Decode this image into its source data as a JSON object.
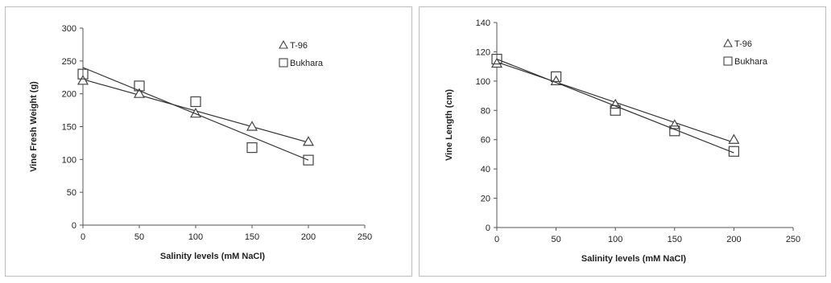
{
  "chart_data": [
    {
      "type": "scatter",
      "xlabel": "Salinity levels (mM NaCl)",
      "ylabel": "Vine Fresh Weight (g)",
      "xlim": [
        0,
        250
      ],
      "ylim": [
        0,
        300
      ],
      "xticks": [
        "0",
        "50",
        "100",
        "150",
        "200",
        "250"
      ],
      "yticks": [
        "0",
        "50",
        "100",
        "150",
        "200",
        "250",
        "300"
      ],
      "legend_position": "top-right",
      "grid": false,
      "series": [
        {
          "name": "T-96",
          "marker": "triangle",
          "x": [
            0,
            50,
            100,
            150,
            200
          ],
          "values": [
            220,
            200,
            170,
            150,
            127
          ],
          "trendline": [
            222,
            126
          ]
        },
        {
          "name": "Bukhara",
          "marker": "square",
          "x": [
            0,
            50,
            100,
            150,
            200
          ],
          "values": [
            230,
            212,
            188,
            118,
            99
          ],
          "trendline": [
            240,
            99
          ]
        }
      ]
    },
    {
      "type": "scatter",
      "xlabel": "Salinity levels (mM NaCl)",
      "ylabel": "Vine Length (cm)",
      "xlim": [
        0,
        250
      ],
      "ylim": [
        0,
        140
      ],
      "xticks": [
        "0",
        "50",
        "100",
        "150",
        "200",
        "250"
      ],
      "yticks": [
        "0",
        "20",
        "40",
        "60",
        "80",
        "100",
        "120",
        "140"
      ],
      "legend_position": "top-right",
      "grid": false,
      "series": [
        {
          "name": "T-96",
          "marker": "triangle",
          "x": [
            0,
            50,
            100,
            150,
            200
          ],
          "values": [
            112,
            100,
            84,
            70,
            60
          ],
          "trendline": [
            113,
            58
          ]
        },
        {
          "name": "Bukhara",
          "marker": "square",
          "x": [
            0,
            50,
            100,
            150,
            200
          ],
          "values": [
            115,
            103,
            80,
            66,
            52
          ],
          "trendline": [
            115,
            51
          ]
        }
      ]
    }
  ]
}
